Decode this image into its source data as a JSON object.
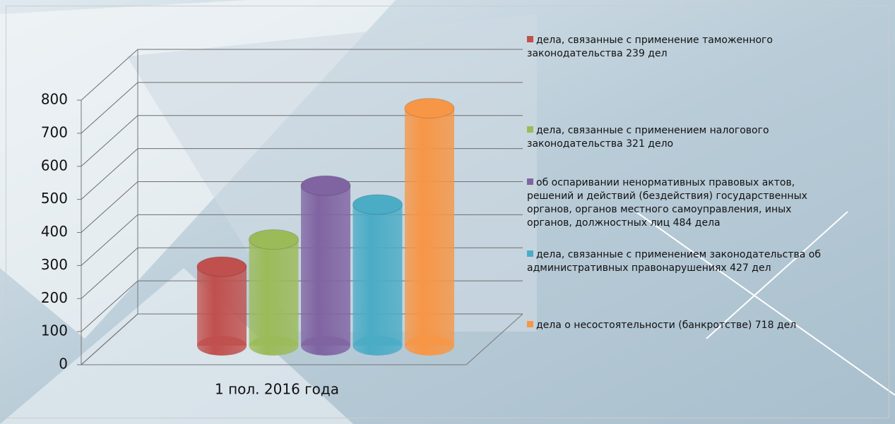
{
  "chart_data": {
    "type": "bar",
    "categories": [
      "1 пол. 2016 года"
    ],
    "series": [
      {
        "name": "дела, связанные с применение таможенного законодательства 239 дел",
        "color": "#c0504d",
        "values": [
          239
        ]
      },
      {
        "name": "дела, связанные с применением налогового законодательства 321 дело",
        "color": "#9bbb59",
        "values": [
          321
        ]
      },
      {
        "name": "об оспаривании ненормативных правовых актов, решений и действий (бездействия) государственных органов, органов местного самоуправления, иных органов, должностных лиц 484 дела",
        "color": "#8064a2",
        "values": [
          484
        ]
      },
      {
        "name": "дела, связанные с применением законодательства об административных правонарушениях 427 дел",
        "color": "#4bacc6",
        "values": [
          427
        ]
      },
      {
        "name": "дела о несостоятельности (банкротстве) 718 дел",
        "color": "#f79646",
        "values": [
          718
        ]
      }
    ],
    "ylim": [
      0,
      800
    ],
    "yticks": [
      0,
      100,
      200,
      300,
      400,
      500,
      600,
      700,
      800
    ],
    "grid": true
  }
}
